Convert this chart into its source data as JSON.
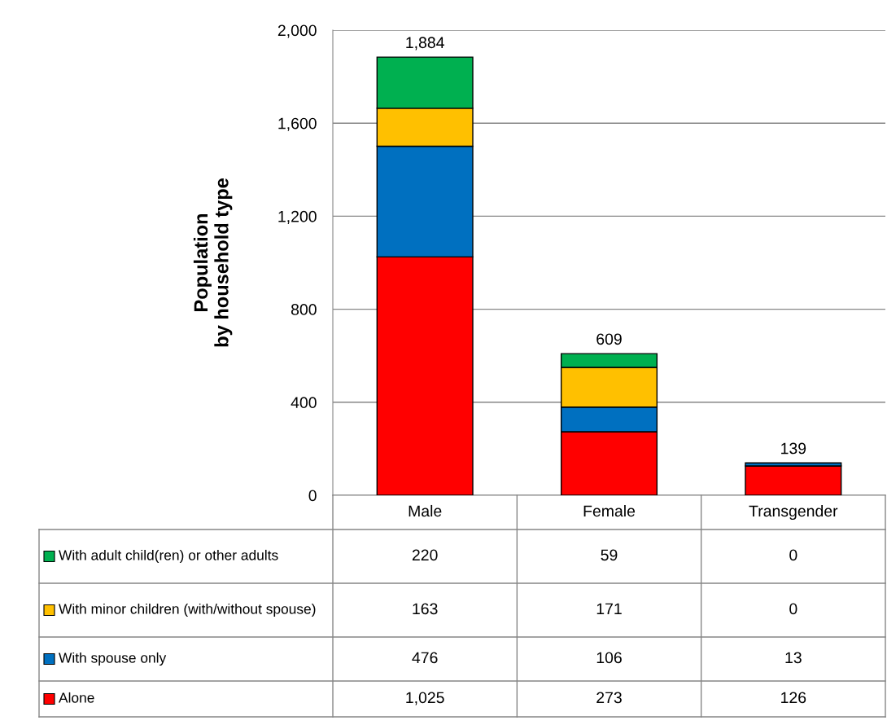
{
  "chart_data": {
    "type": "bar",
    "stacked": true,
    "ylabel": "Population\nby household type",
    "categories": [
      "Male",
      "Female",
      "Transgender"
    ],
    "series": [
      {
        "name": "Alone",
        "color": "#ff0000",
        "values": [
          1025,
          273,
          126
        ],
        "value_labels": [
          "1,025",
          "273",
          "126"
        ]
      },
      {
        "name": "With spouse only",
        "color": "#0070c0",
        "values": [
          476,
          106,
          13
        ],
        "value_labels": [
          "476",
          "106",
          "13"
        ]
      },
      {
        "name": "With minor children (with/without spouse)",
        "color": "#ffc000",
        "values": [
          163,
          171,
          0
        ],
        "value_labels": [
          "163",
          "171",
          "0"
        ]
      },
      {
        "name": "With adult child(ren) or other adults",
        "color": "#00b050",
        "values": [
          220,
          59,
          0
        ],
        "value_labels": [
          "220",
          "59",
          "0"
        ]
      }
    ],
    "totals": [
      "1,884",
      "609",
      "139"
    ],
    "ylim": [
      0,
      2000
    ],
    "yticks": [
      0,
      400,
      800,
      {
        "value": 1200,
        "label": "1,200"
      },
      {
        "value": 1600,
        "label": "1,600"
      },
      {
        "value": 2000,
        "label": "2,000"
      }
    ],
    "grid": "y",
    "legend": "bottom"
  }
}
